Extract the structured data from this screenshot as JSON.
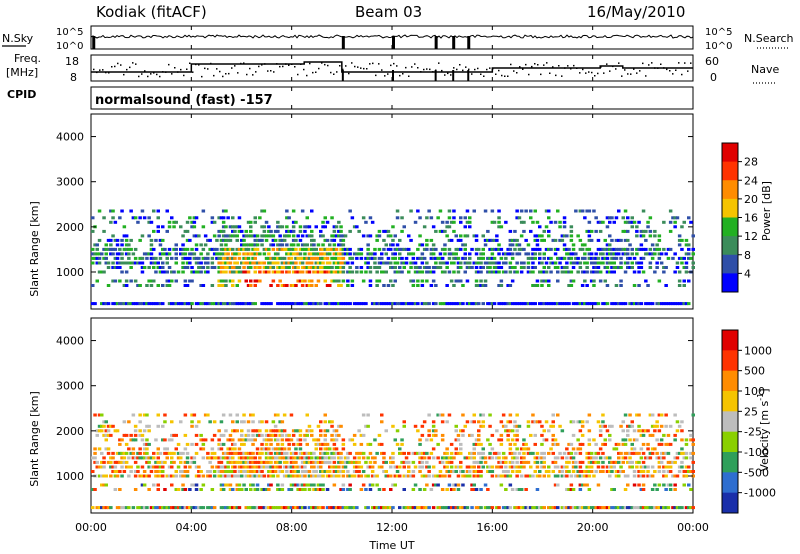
{
  "header": {
    "station": "Kodiak (fitACF)",
    "beam": "Beam 03",
    "date": "16/May/2010"
  },
  "top_panels": {
    "nsky": {
      "label": "N.Sky",
      "ticks": [
        "10^5",
        "10^0"
      ]
    },
    "nsearch": {
      "label": "N.Search",
      "ticks": [
        "10^5",
        "10^0"
      ]
    },
    "freq": {
      "label_top": "Freq.",
      "label_bottom": "[MHz]",
      "ticks": [
        "18",
        "8"
      ]
    },
    "nave": {
      "label": "Nave",
      "ticks": [
        "60",
        "0"
      ]
    },
    "cpid": {
      "label": "CPID",
      "value": "normalsound (fast) -157"
    }
  },
  "panels": {
    "power": {
      "ylabel": "Slant Range [km]",
      "yticks": [
        "4000",
        "3000",
        "2000",
        "1000"
      ],
      "colorbar_label": "Power [dB]",
      "colorbar_ticks": [
        "28",
        "24",
        "20",
        "16",
        "12",
        "8",
        "4"
      ]
    },
    "velocity": {
      "ylabel": "Slant Range [km]",
      "yticks": [
        "4000",
        "3000",
        "2000",
        "1000"
      ],
      "colorbar_label_main": "Velocity  [m s",
      "colorbar_label_sup": "-1",
      "colorbar_label_end": "]",
      "colorbar_ticks": [
        "1000",
        "500",
        "100",
        "25",
        "-25",
        "-100",
        "-500",
        "-1000"
      ]
    }
  },
  "xaxis": {
    "label": "Time UT",
    "ticks": [
      "00:00",
      "04:00",
      "08:00",
      "12:00",
      "16:00",
      "20:00",
      "00:00"
    ]
  },
  "colors": {
    "power_scale": [
      "#0000ff",
      "#2f4fa8",
      "#3b8c5a",
      "#22b022",
      "#f5c400",
      "#ff8c00",
      "#ff3300",
      "#e00000"
    ],
    "velocity_scale": [
      "#1a2faa",
      "#2e6ed0",
      "#2f9f5a",
      "#8ad000",
      "#bdbdbd",
      "#f5c400",
      "#ff8c00",
      "#ff3300",
      "#e00000"
    ]
  },
  "chart_data": [
    {
      "type": "line",
      "title": "N.Sky / N.Search",
      "yscale": "log",
      "ylim": [
        1,
        100000
      ],
      "series": [
        {
          "name": "N.Sky",
          "values_approx": "≈10^4 steady through the day, brief drops near 10:00, 12:00, 13:40, 14:30, 15:00"
        },
        {
          "name": "N.Search",
          "values_approx": "≈10^4 steady"
        }
      ]
    },
    {
      "type": "line",
      "title": "Freq. [MHz] / Nave",
      "ylim": [
        8,
        18
      ],
      "series": [
        {
          "name": "Freq.",
          "values_approx": "≈10.5 MHz 00:00–04:00, ≈12 MHz 04:00–08:30, ≈13 MHz 08:30–10:00, ≈10.5 MHz 10:00–16:00, ≈11.5 MHz 16:00–24:00"
        },
        {
          "name": "Nave",
          "ylim": [
            0,
            60
          ],
          "values_approx": "scattered ≈20–40"
        }
      ]
    },
    {
      "type": "heatmap",
      "title": "Power [dB]",
      "xlabel": "Time UT",
      "ylabel": "Slant Range [km]",
      "xlim": [
        0,
        24
      ],
      "ylim": [
        180,
        4500
      ],
      "clim": [
        0,
        30
      ],
      "range_gates_km": [
        300,
        700,
        800,
        1000,
        1100,
        1200,
        1300,
        1400,
        1500,
        1600,
        1700,
        1800,
        1900,
        2000,
        2100,
        2200,
        2350
      ],
      "features": [
        "Strong echoes (24–30 dB) near 700–800 km around 06:30–09:30 UT",
        "Moderate echoes (12–20 dB) between 1000–2000 km 05:00–10:00 UT",
        "Weak near-range echoes at 300 km throughout the day"
      ]
    },
    {
      "type": "heatmap",
      "title": "Velocity [m s^-1]",
      "xlabel": "Time UT",
      "ylabel": "Slant Range [km]",
      "xlim": [
        0,
        24
      ],
      "ylim": [
        180,
        4500
      ],
      "clim": [
        -1000,
        1000
      ],
      "range_gates_km": [
        300,
        700,
        800,
        1000,
        1100,
        1200,
        1300,
        1400,
        1500,
        1600,
        1700,
        1800,
        1900,
        2000,
        2100,
        2200,
        2350
      ],
      "features": [
        "Predominantly negative velocities (-25 to -500) between 1000–2000 km",
        "Mixed positive velocities near 300–800 km"
      ]
    }
  ]
}
